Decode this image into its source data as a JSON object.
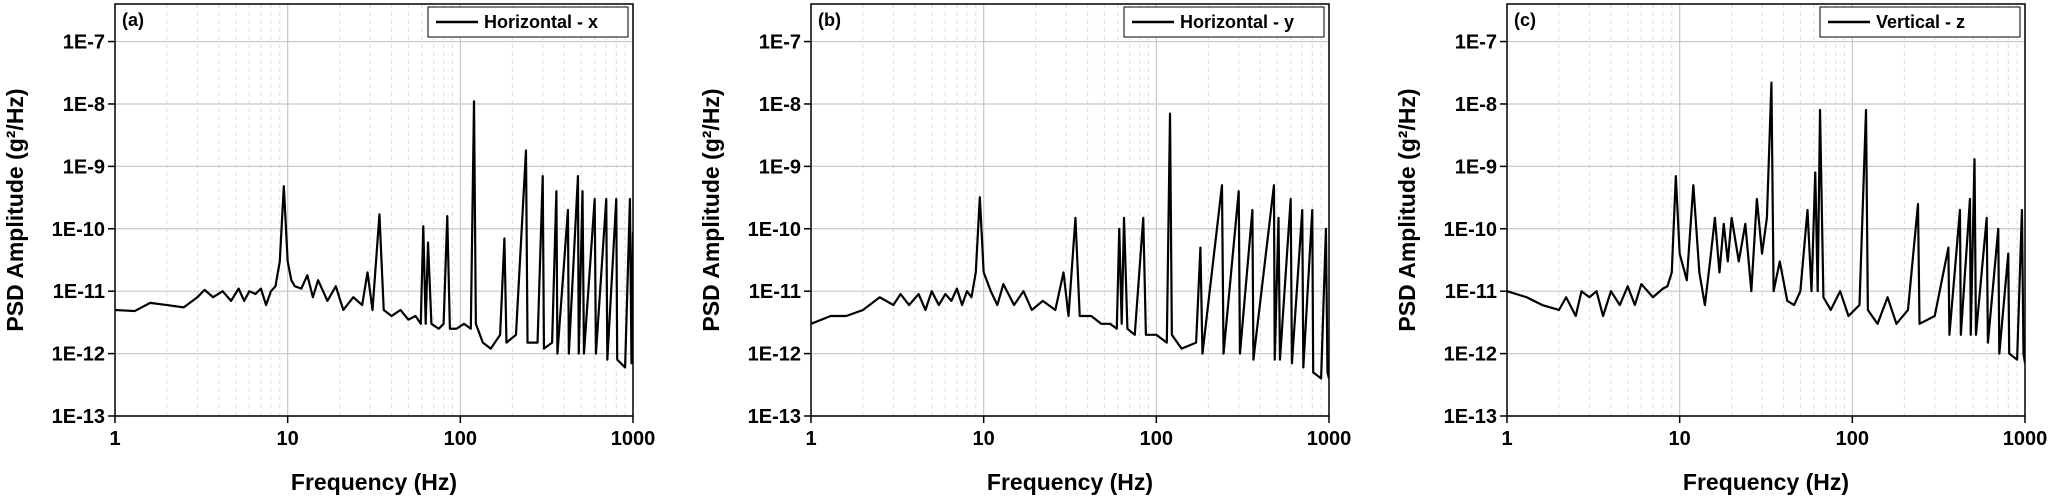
{
  "chart_data": [
    {
      "type": "line",
      "panel_label": "(a)",
      "xlabel": "Frequency (Hz)",
      "ylabel": "PSD Amplitude (g²/Hz)",
      "log_x": true,
      "log_y": true,
      "grid": true,
      "legend": "upper right",
      "xlim": [
        1,
        1000
      ],
      "ylim": [
        1e-13,
        4e-07
      ],
      "xticks": [
        1,
        10,
        100,
        1000
      ],
      "minor_xticks": [
        2,
        3,
        4,
        5,
        6,
        7,
        8,
        9,
        20,
        30,
        40,
        50,
        60,
        70,
        80,
        90,
        200,
        300,
        400,
        500,
        600,
        700,
        800,
        900
      ],
      "yticks": [
        {
          "value": 1e-13,
          "label": "1E-13"
        },
        {
          "value": 1e-12,
          "label": "1E-12"
        },
        {
          "value": 1e-11,
          "label": "1E-11"
        },
        {
          "value": 1e-10,
          "label": "1E-10"
        },
        {
          "value": 1e-09,
          "label": "1E-9"
        },
        {
          "value": 1e-08,
          "label": "1E-8"
        },
        {
          "value": 1e-07,
          "label": "1E-7"
        }
      ],
      "x": [
        1,
        1.3,
        1.6,
        2,
        2.5,
        3,
        3.3,
        3.7,
        4.2,
        4.7,
        5.2,
        5.6,
        6,
        6.5,
        7,
        7.5,
        8,
        8.5,
        9,
        9.5,
        10,
        10.5,
        11,
        12,
        13,
        14,
        15,
        17,
        19,
        21,
        24,
        27,
        29,
        31,
        34,
        36,
        40,
        45,
        50,
        55,
        59,
        61,
        63,
        65,
        68,
        75,
        80,
        84,
        87,
        95,
        105,
        115,
        120,
        123,
        135,
        150,
        170,
        180,
        185,
        210,
        240,
        245,
        280,
        300,
        305,
        340,
        360,
        365,
        420,
        425,
        480,
        485,
        510,
        520,
        600,
        610,
        700,
        710,
        800,
        810,
        900,
        960,
        980,
        1000
      ],
      "series": [
        {
          "name": "Horizontal - x",
          "color": "#000000",
          "values": [
            5e-12,
            4.8e-12,
            6.5e-12,
            6e-12,
            5.5e-12,
            8e-12,
            1.05e-11,
            8e-12,
            1e-11,
            7e-12,
            1.1e-11,
            7e-12,
            1e-11,
            9e-12,
            1.1e-11,
            6e-12,
            1e-11,
            1.2e-11,
            3e-11,
            4.8e-10,
            3e-11,
            1.5e-11,
            1.2e-11,
            1.1e-11,
            1.8e-11,
            8e-12,
            1.5e-11,
            7e-12,
            1.2e-11,
            5e-12,
            8e-12,
            6e-12,
            2e-11,
            5e-12,
            1.7e-10,
            5e-12,
            4e-12,
            5e-12,
            3.5e-12,
            4e-12,
            3e-12,
            1.1e-10,
            3e-12,
            6e-11,
            3e-12,
            2.5e-12,
            3e-12,
            1.6e-10,
            2.5e-12,
            2.5e-12,
            3e-12,
            2.5e-12,
            1.1e-08,
            3e-12,
            1.5e-12,
            1.2e-12,
            2e-12,
            7e-11,
            1.5e-12,
            2e-12,
            1.8e-09,
            1.5e-12,
            1.5e-12,
            7e-10,
            1.2e-12,
            1.5e-12,
            4e-10,
            1e-12,
            2e-10,
            1e-12,
            7e-10,
            1e-12,
            4e-10,
            1e-12,
            3e-10,
            1e-12,
            3e-10,
            8e-13,
            3e-10,
            8e-13,
            6e-13,
            3e-10,
            7e-13,
            9e-11
          ]
        }
      ]
    },
    {
      "type": "line",
      "panel_label": "(b)",
      "xlabel": "Frequency (Hz)",
      "ylabel": "PSD Amplitude (g²/Hz)",
      "log_x": true,
      "log_y": true,
      "grid": true,
      "legend": "upper right",
      "xlim": [
        1,
        1000
      ],
      "ylim": [
        1e-13,
        4e-07
      ],
      "xticks": [
        1,
        10,
        100,
        1000
      ],
      "minor_xticks": [
        2,
        3,
        4,
        5,
        6,
        7,
        8,
        9,
        20,
        30,
        40,
        50,
        60,
        70,
        80,
        90,
        200,
        300,
        400,
        500,
        600,
        700,
        800,
        900
      ],
      "yticks": [
        {
          "value": 1e-13,
          "label": "1E-13"
        },
        {
          "value": 1e-12,
          "label": "1E-12"
        },
        {
          "value": 1e-11,
          "label": "1E-11"
        },
        {
          "value": 1e-10,
          "label": "1E-10"
        },
        {
          "value": 1e-09,
          "label": "1E-9"
        },
        {
          "value": 1e-08,
          "label": "1E-8"
        },
        {
          "value": 1e-07,
          "label": "1E-7"
        }
      ],
      "x": [
        1,
        1.3,
        1.6,
        2,
        2.5,
        3,
        3.3,
        3.7,
        4.2,
        4.6,
        5,
        5.5,
        6,
        6.5,
        7,
        7.5,
        8,
        8.5,
        9,
        9.5,
        10,
        11,
        12,
        13,
        15,
        17,
        19,
        22,
        26,
        29,
        31,
        34,
        36,
        42,
        48,
        54,
        59,
        61,
        63,
        65,
        68,
        75,
        84,
        87,
        100,
        115,
        120,
        123,
        140,
        170,
        180,
        185,
        240,
        245,
        300,
        305,
        360,
        365,
        480,
        485,
        510,
        520,
        600,
        610,
        700,
        710,
        800,
        810,
        900,
        960,
        980,
        1000
      ],
      "series": [
        {
          "name": "Horizontal - y",
          "color": "#000000",
          "values": [
            3e-12,
            4e-12,
            4e-12,
            5e-12,
            8e-12,
            6e-12,
            9e-12,
            6e-12,
            9e-12,
            5e-12,
            1e-11,
            6e-12,
            9e-12,
            7e-12,
            1.1e-11,
            6e-12,
            1e-11,
            8e-12,
            2e-11,
            3.2e-10,
            2e-11,
            1e-11,
            6e-12,
            1.3e-11,
            6e-12,
            1e-11,
            5e-12,
            7e-12,
            5e-12,
            2e-11,
            4e-12,
            1.5e-10,
            4e-12,
            4e-12,
            3e-12,
            3e-12,
            2.5e-12,
            1e-10,
            3e-12,
            1.5e-10,
            2.5e-12,
            2e-12,
            1.5e-10,
            2e-12,
            2e-12,
            1.5e-12,
            7e-09,
            2e-12,
            1.2e-12,
            1.5e-12,
            5e-11,
            1e-12,
            5e-10,
            1e-12,
            4e-10,
            1e-12,
            2e-10,
            8e-13,
            5e-10,
            8e-13,
            1.5e-10,
            8e-13,
            3e-10,
            7e-13,
            2e-10,
            6e-13,
            2e-10,
            5e-13,
            4e-13,
            1e-10,
            5e-13,
            4e-13
          ]
        }
      ]
    },
    {
      "type": "line",
      "panel_label": "(c)",
      "xlabel": "Frequency (Hz)",
      "ylabel": "PSD Amplitude (g²/Hz)",
      "log_x": true,
      "log_y": true,
      "grid": true,
      "legend": "upper right",
      "xlim": [
        1,
        1000
      ],
      "ylim": [
        1e-13,
        4e-07
      ],
      "xticks": [
        1,
        10,
        100,
        1000
      ],
      "minor_xticks": [
        2,
        3,
        4,
        5,
        6,
        7,
        8,
        9,
        20,
        30,
        40,
        50,
        60,
        70,
        80,
        90,
        200,
        300,
        400,
        500,
        600,
        700,
        800,
        900
      ],
      "yticks": [
        {
          "value": 1e-13,
          "label": "1E-13"
        },
        {
          "value": 1e-12,
          "label": "1E-12"
        },
        {
          "value": 1e-11,
          "label": "1E-11"
        },
        {
          "value": 1e-10,
          "label": "1E-10"
        },
        {
          "value": 1e-09,
          "label": "1E-9"
        },
        {
          "value": 1e-08,
          "label": "1E-8"
        },
        {
          "value": 1e-07,
          "label": "1E-7"
        }
      ],
      "x": [
        1,
        1.3,
        1.6,
        2,
        2.2,
        2.5,
        2.7,
        3,
        3.3,
        3.6,
        4,
        4.5,
        5,
        5.5,
        6,
        7,
        8,
        8.5,
        9,
        9.5,
        10,
        11,
        12,
        13,
        14,
        15,
        16,
        17,
        18,
        19,
        20,
        22,
        24,
        26,
        28,
        30,
        32,
        34,
        35,
        38,
        42,
        46,
        50,
        55,
        58,
        61,
        63,
        65,
        68,
        75,
        85,
        95,
        110,
        120,
        123,
        140,
        160,
        180,
        210,
        240,
        245,
        300,
        360,
        365,
        420,
        425,
        480,
        485,
        510,
        520,
        600,
        610,
        700,
        710,
        800,
        810,
        900,
        960,
        980,
        1000
      ],
      "series": [
        {
          "name": "Vertical - z",
          "color": "#000000",
          "values": [
            1e-11,
            8e-12,
            6e-12,
            5e-12,
            8e-12,
            4e-12,
            1e-11,
            8e-12,
            1e-11,
            4e-12,
            1e-11,
            6e-12,
            1.2e-11,
            6e-12,
            1.3e-11,
            8e-12,
            1.1e-11,
            1.2e-11,
            2e-11,
            7e-10,
            4e-11,
            1.5e-11,
            5e-10,
            2e-11,
            6e-12,
            3e-11,
            1.5e-10,
            2e-11,
            1.2e-10,
            3e-11,
            1.5e-10,
            3e-11,
            1.2e-10,
            1e-11,
            3e-10,
            4e-11,
            1.5e-10,
            2.2e-08,
            1e-11,
            3e-11,
            7e-12,
            6e-12,
            1e-11,
            2e-10,
            1e-11,
            8e-10,
            1e-11,
            8e-09,
            8e-12,
            5e-12,
            1e-11,
            4e-12,
            6e-12,
            8e-09,
            5e-12,
            3e-12,
            8e-12,
            3e-12,
            5e-12,
            2.5e-10,
            3e-12,
            4e-12,
            5e-11,
            2e-12,
            2e-10,
            2e-12,
            3e-10,
            2e-12,
            1.3e-09,
            2e-12,
            1.5e-10,
            1.5e-12,
            1e-10,
            1e-12,
            4e-11,
            1e-12,
            8e-13,
            2e-10,
            1e-12,
            7e-13
          ]
        }
      ]
    }
  ]
}
